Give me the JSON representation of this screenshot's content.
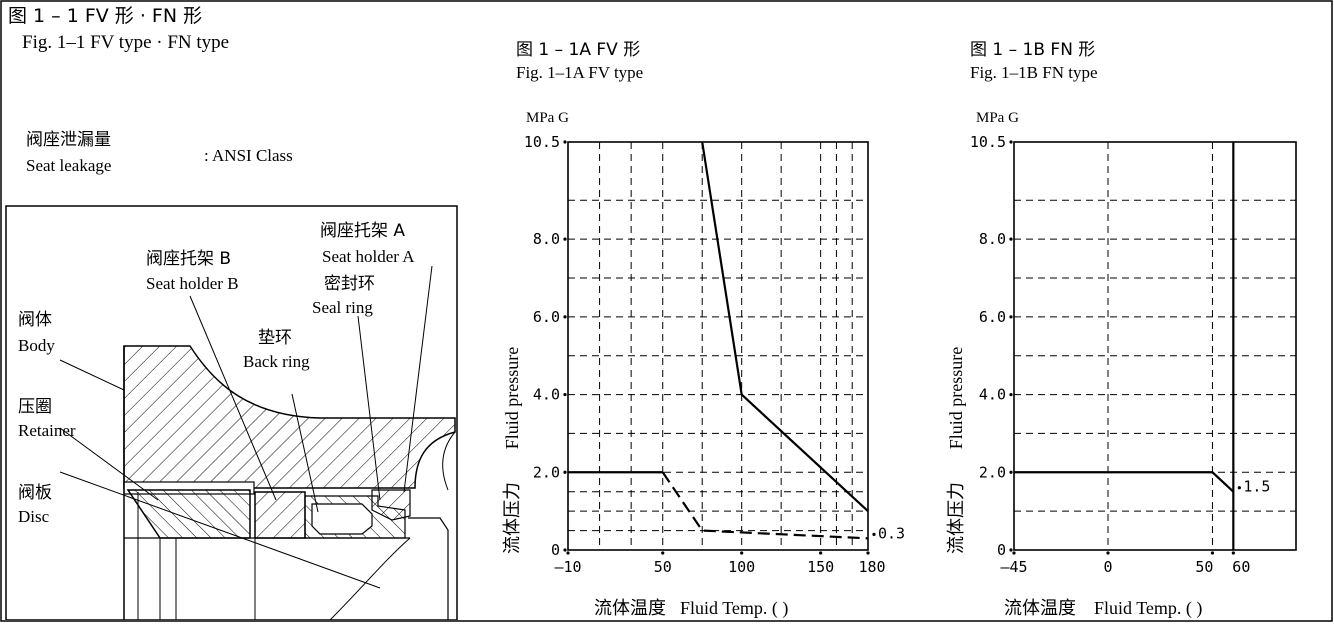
{
  "header": {
    "title_cn": "图 1 – 1  FV 形 · FN 形",
    "title_en": "Fig. 1–1  FV type · FN type"
  },
  "leakage": {
    "label_cn": "阀座泄漏量",
    "label_en": "Seat leakage",
    "value": ": ANSI Class"
  },
  "parts": {
    "seat_holder_a_cn": "阀座托架 A",
    "seat_holder_a_en": "Seat holder A",
    "seat_holder_b_cn": "阀座托架 B",
    "seat_holder_b_en": "Seat holder B",
    "seal_ring_cn": "密封环",
    "seal_ring_en": "Seal ring",
    "body_cn": "阀体",
    "body_en": "Body",
    "back_ring_cn": "垫环",
    "back_ring_en": "Back ring",
    "retainer_cn": "压圈",
    "retainer_en": "Retainer",
    "disc_cn": "阀板",
    "disc_en": "Disc"
  },
  "chart_data": [
    {
      "type": "line",
      "title_cn": "图 1 – 1A   FV 形",
      "title_en": "Fig. 1–1A   FV type",
      "unit": "MPa G",
      "ylabel_en": "Fluid pressure",
      "ylabel_cn": "流体压力",
      "xlabel_cn": "流体温度",
      "xlabel_en": "Fluid Temp. (   )",
      "xlim": [
        -10,
        180
      ],
      "ylim": [
        0,
        10.5
      ],
      "x_ticks": [
        -10,
        50,
        100,
        150,
        180
      ],
      "x_tick_labels": [
        "–10",
        "50",
        "100",
        "150",
        "180"
      ],
      "y_ticks": [
        0,
        2,
        4,
        6,
        8,
        10.5
      ],
      "y_tick_labels": [
        "0",
        "2.0",
        "4.0",
        "6.0",
        "8.0",
        "10.5"
      ],
      "grid": true,
      "annotations": [
        "0.3"
      ],
      "series": [
        {
          "style": "solid",
          "points": [
            [
              75,
              10.5
            ],
            [
              100,
              4.0
            ],
            [
              180,
              1.0
            ]
          ]
        },
        {
          "style": "solid",
          "points": [
            [
              -10,
              2.0
            ],
            [
              50,
              2.0
            ]
          ]
        },
        {
          "style": "dashed",
          "points": [
            [
              50,
              2.0
            ],
            [
              75,
              0.5
            ],
            [
              180,
              0.3
            ]
          ]
        }
      ]
    },
    {
      "type": "line",
      "title_cn": "图 1 – 1B   FN 形",
      "title_en": "Fig. 1–1B   FN type",
      "unit": "MPa G",
      "ylabel_en": "Fluid pressure",
      "ylabel_cn": "流体压力",
      "xlabel_cn": "流体温度",
      "xlabel_en": "Fluid Temp. (   )",
      "xlim": [
        -45,
        90
      ],
      "ylim": [
        0,
        10.5
      ],
      "x_ticks": [
        -45,
        0,
        50,
        60
      ],
      "x_tick_labels": [
        "–45",
        "0",
        "50",
        "60"
      ],
      "y_ticks": [
        0,
        2,
        4,
        6,
        8,
        10.5
      ],
      "y_tick_labels": [
        "0",
        "2.0",
        "4.0",
        "6.0",
        "8.0",
        "10.5"
      ],
      "grid": true,
      "annotations": [
        "1.5"
      ],
      "series": [
        {
          "style": "solid",
          "points": [
            [
              -45,
              2.0
            ],
            [
              50,
              2.0
            ],
            [
              60,
              1.5
            ]
          ]
        },
        {
          "style": "solid",
          "points": [
            [
              60,
              0
            ],
            [
              60,
              10.5
            ]
          ]
        }
      ]
    }
  ]
}
